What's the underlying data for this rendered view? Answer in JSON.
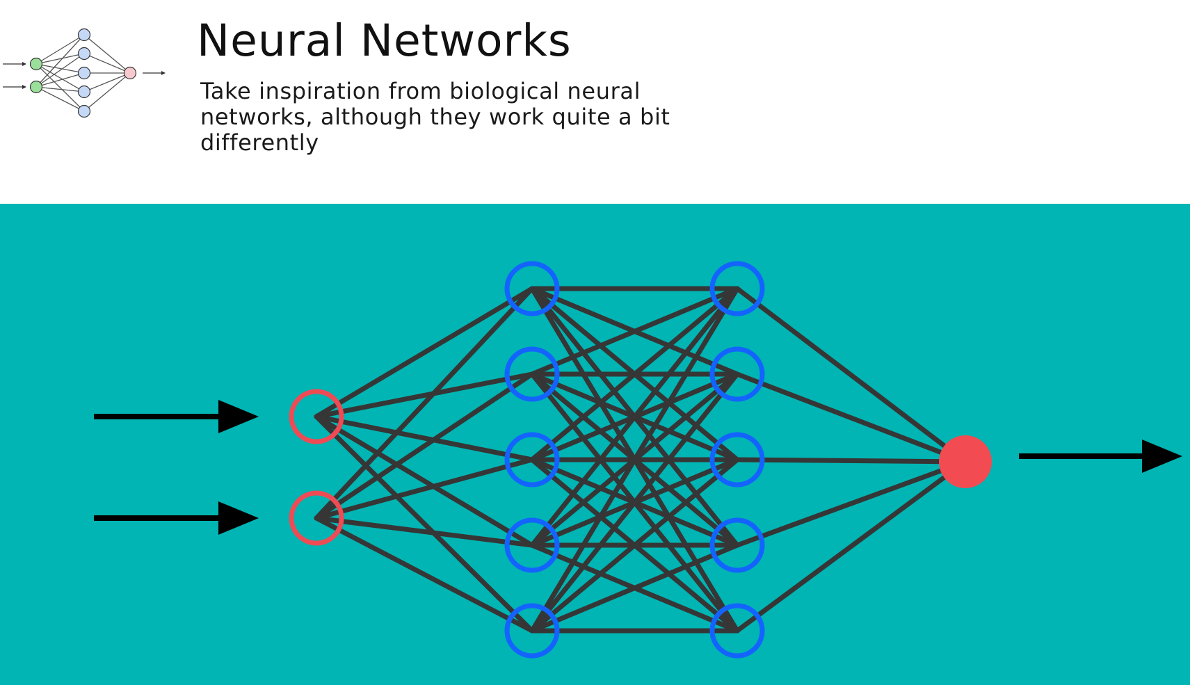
{
  "header": {
    "title": "Neural Networks",
    "subtitle": "Take inspiration from biological neural networks, although they work quite a bit differently"
  },
  "diagram": {
    "background_color": "#00b5b3",
    "edge_color": "#363636",
    "arrow_color": "#000000",
    "layers": [
      {
        "name": "input-layer",
        "count": 2,
        "color": "#ee4b55",
        "style": "ring"
      },
      {
        "name": "hidden-layer-1",
        "count": 5,
        "color": "#1463ff",
        "style": "ring"
      },
      {
        "name": "hidden-layer-2",
        "count": 5,
        "color": "#1463ff",
        "style": "ring"
      },
      {
        "name": "output-layer",
        "count": 1,
        "color": "#f24b52",
        "style": "filled"
      }
    ],
    "connectivity": "fully-connected",
    "input_arrows": 2,
    "output_arrows": 1
  },
  "logo": {
    "icon": "neural-network-icon",
    "input_color": "#9be09a",
    "hidden_color": "#c5d9f7",
    "output_color": "#f6c9cf",
    "stroke_color": "#555555"
  }
}
